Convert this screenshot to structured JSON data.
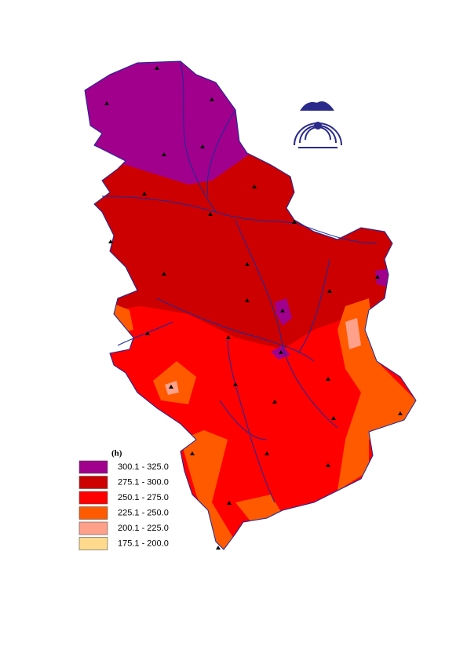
{
  "legend": {
    "title": "(h)",
    "items": [
      {
        "label": "300.1 - 325.0",
        "color": "#a0008c"
      },
      {
        "label": "275.1 - 300.0",
        "color": "#cc0000"
      },
      {
        "label": "250.1 - 275.0",
        "color": "#ff0000"
      },
      {
        "label": "225.1 - 250.0",
        "color": "#ff5a00"
      },
      {
        "label": "200.1 - 225.0",
        "color": "#ffa08a"
      },
      {
        "label": "175.1 - 200.0",
        "color": "#ffd98c"
      }
    ]
  }
}
